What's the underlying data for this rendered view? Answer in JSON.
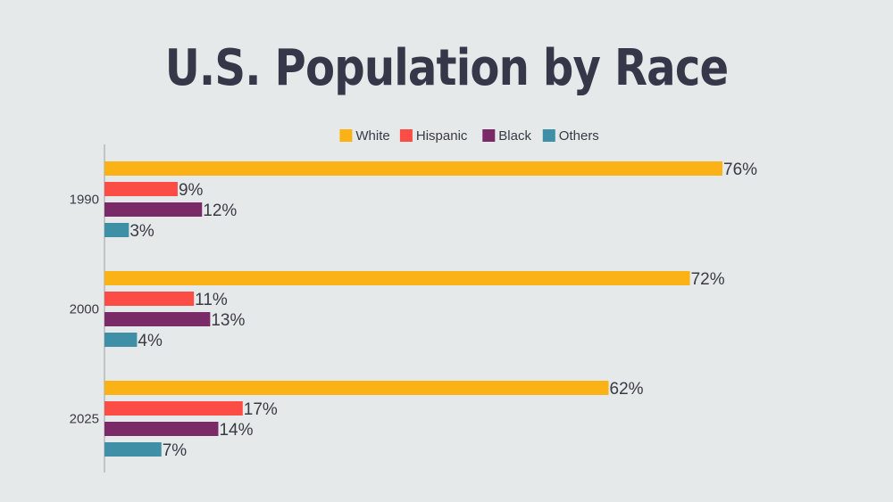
{
  "chart_data": {
    "type": "bar",
    "orientation": "horizontal",
    "title": "U.S. Population by Race",
    "xlabel": "",
    "ylabel": "",
    "categories": [
      "1990",
      "2000",
      "2025"
    ],
    "series": [
      {
        "name": "White",
        "color": "#fbb217",
        "values": [
          76,
          72,
          62
        ],
        "labels": [
          "76%",
          "72%",
          "62%"
        ]
      },
      {
        "name": "Hispanic",
        "color": "#fb4c45",
        "values": [
          9,
          11,
          17
        ],
        "labels": [
          "9%",
          "11%",
          "17%"
        ]
      },
      {
        "name": "Black",
        "color": "#7b2a68",
        "values": [
          12,
          13,
          14
        ],
        "labels": [
          "12%",
          "13%",
          "14%"
        ]
      },
      {
        "name": "Others",
        "color": "#3f8fa6",
        "values": [
          3,
          4,
          7
        ],
        "labels": [
          "3%",
          "4%",
          "7%"
        ]
      }
    ],
    "xlim": [
      0,
      100
    ],
    "grid": false,
    "legend_position": "top-center",
    "axis_color": "#9aa0a3",
    "text_color": "#3a3a44"
  }
}
